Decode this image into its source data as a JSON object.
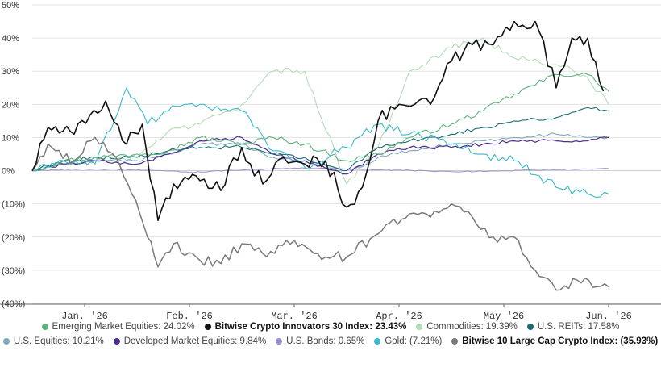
{
  "chart_data": {
    "type": "line",
    "x_labels": [
      "Jan. '26",
      "Feb. '26",
      "Mar. '26",
      "Apr. '26",
      "May '26",
      "Jun. '26"
    ],
    "ylim": [
      -40,
      50
    ],
    "y_ticks": [
      {
        "value": 50,
        "label": "50%"
      },
      {
        "value": 40,
        "label": "40%"
      },
      {
        "value": 30,
        "label": "30%"
      },
      {
        "value": 20,
        "label": "20%"
      },
      {
        "value": 10,
        "label": "10%"
      },
      {
        "value": 0,
        "label": "0%"
      },
      {
        "value": -10,
        "label": "(10%)"
      },
      {
        "value": -20,
        "label": "(20%)"
      },
      {
        "value": -30,
        "label": "(30%)"
      },
      {
        "value": -40,
        "label": "(40%)"
      }
    ],
    "grid": true,
    "legend_position": "bottom",
    "series": [
      {
        "name": "Emerging Market Equities: 24.02%",
        "color": "#5db37e",
        "bold": false,
        "points": [
          [
            0,
            0
          ],
          [
            0.3,
            3
          ],
          [
            0.6,
            4
          ],
          [
            1,
            5
          ],
          [
            1.3,
            6
          ],
          [
            1.6,
            10
          ],
          [
            2,
            8
          ],
          [
            2.3,
            10
          ],
          [
            2.6,
            8
          ],
          [
            3,
            3
          ],
          [
            3.3,
            5
          ],
          [
            3.6,
            10
          ],
          [
            4,
            14
          ],
          [
            4.3,
            18
          ],
          [
            4.6,
            23
          ],
          [
            5,
            29
          ],
          [
            5.3,
            29
          ],
          [
            5.5,
            24
          ]
        ]
      },
      {
        "name": "Bitwise Crypto Innovators 30 Index: 23.43%",
        "color": "#111111",
        "bold": true,
        "points": [
          [
            0,
            0
          ],
          [
            0.15,
            13
          ],
          [
            0.4,
            11
          ],
          [
            0.7,
            21
          ],
          [
            0.9,
            8
          ],
          [
            1.05,
            14
          ],
          [
            1.2,
            -15
          ],
          [
            1.35,
            -4
          ],
          [
            1.6,
            -3
          ],
          [
            1.8,
            -6
          ],
          [
            2.0,
            7
          ],
          [
            2.2,
            -4
          ],
          [
            2.4,
            4
          ],
          [
            2.6,
            2
          ],
          [
            2.8,
            3
          ],
          [
            3.0,
            -11
          ],
          [
            3.15,
            -5
          ],
          [
            3.3,
            15
          ],
          [
            3.5,
            20
          ],
          [
            3.8,
            20
          ],
          [
            4.0,
            33
          ],
          [
            4.2,
            38
          ],
          [
            4.4,
            38
          ],
          [
            4.6,
            45
          ],
          [
            4.8,
            45
          ],
          [
            5.0,
            25
          ],
          [
            5.15,
            40
          ],
          [
            5.3,
            40
          ],
          [
            5.45,
            24
          ]
        ]
      },
      {
        "name": "Commodities: 19.39%",
        "color": "#b4dbb6",
        "bold": false,
        "points": [
          [
            0,
            0
          ],
          [
            0.3,
            2
          ],
          [
            0.6,
            3
          ],
          [
            1,
            4
          ],
          [
            1.3,
            12
          ],
          [
            1.6,
            14
          ],
          [
            2,
            20
          ],
          [
            2.3,
            30
          ],
          [
            2.6,
            30
          ],
          [
            3,
            -4
          ],
          [
            3.3,
            7
          ],
          [
            3.6,
            30
          ],
          [
            4,
            37
          ],
          [
            4.3,
            40
          ],
          [
            4.6,
            34
          ],
          [
            5,
            32
          ],
          [
            5.3,
            28
          ],
          [
            5.5,
            20
          ]
        ]
      },
      {
        "name": "U.S. REITs: 17.58%",
        "color": "#1a6b73",
        "bold": false,
        "points": [
          [
            0,
            0
          ],
          [
            0.3,
            3
          ],
          [
            0.6,
            4
          ],
          [
            1,
            4
          ],
          [
            1.3,
            6
          ],
          [
            1.6,
            7
          ],
          [
            2,
            7
          ],
          [
            2.3,
            5
          ],
          [
            2.6,
            4
          ],
          [
            3,
            0
          ],
          [
            3.3,
            7
          ],
          [
            3.6,
            9
          ],
          [
            4,
            11
          ],
          [
            4.3,
            13
          ],
          [
            4.6,
            15
          ],
          [
            5,
            16
          ],
          [
            5.3,
            19
          ],
          [
            5.5,
            18
          ]
        ]
      },
      {
        "name": "U.S. Equities: 10.21%",
        "color": "#7fa7bf",
        "bold": false,
        "points": [
          [
            0,
            0
          ],
          [
            0.3,
            2
          ],
          [
            0.6,
            3
          ],
          [
            1,
            3
          ],
          [
            1.3,
            5
          ],
          [
            1.6,
            8
          ],
          [
            2,
            8
          ],
          [
            2.3,
            4
          ],
          [
            2.6,
            3
          ],
          [
            3,
            -1
          ],
          [
            3.3,
            4
          ],
          [
            3.6,
            6
          ],
          [
            4,
            8
          ],
          [
            4.3,
            9
          ],
          [
            4.6,
            10
          ],
          [
            5,
            11
          ],
          [
            5.3,
            10
          ],
          [
            5.5,
            10
          ]
        ]
      },
      {
        "name": "Developed Market Equities: 9.84%",
        "color": "#4b2d8f",
        "bold": false,
        "points": [
          [
            0,
            0
          ],
          [
            0.3,
            2
          ],
          [
            0.6,
            3
          ],
          [
            1,
            2
          ],
          [
            1.3,
            5
          ],
          [
            1.6,
            9
          ],
          [
            2,
            10
          ],
          [
            2.3,
            5
          ],
          [
            2.6,
            3
          ],
          [
            3,
            -1
          ],
          [
            3.3,
            5
          ],
          [
            3.6,
            7
          ],
          [
            4,
            7
          ],
          [
            4.3,
            8
          ],
          [
            4.6,
            9
          ],
          [
            5,
            9
          ],
          [
            5.3,
            9
          ],
          [
            5.5,
            10
          ]
        ]
      },
      {
        "name": "U.S. Bonds: 0.65%",
        "color": "#9a8fcf",
        "bold": false,
        "points": [
          [
            0,
            0
          ],
          [
            0.5,
            0.5
          ],
          [
            1,
            0.3
          ],
          [
            1.5,
            -0.5
          ],
          [
            2,
            0.2
          ],
          [
            2.5,
            0.8
          ],
          [
            3,
            0.5
          ],
          [
            3.5,
            0.2
          ],
          [
            4,
            -0.3
          ],
          [
            4.5,
            0
          ],
          [
            5,
            0.3
          ],
          [
            5.5,
            0.65
          ]
        ]
      },
      {
        "name": "Gold: (7.21%)",
        "color": "#3bb8cc",
        "bold": false,
        "points": [
          [
            0,
            0
          ],
          [
            0.3,
            3
          ],
          [
            0.6,
            2
          ],
          [
            0.9,
            25
          ],
          [
            1.1,
            14
          ],
          [
            1.3,
            18
          ],
          [
            1.6,
            20
          ],
          [
            2,
            18
          ],
          [
            2.3,
            6
          ],
          [
            2.6,
            1
          ],
          [
            3,
            7
          ],
          [
            3.3,
            14
          ],
          [
            3.6,
            11
          ],
          [
            4,
            8
          ],
          [
            4.3,
            5
          ],
          [
            4.6,
            3
          ],
          [
            5,
            -5
          ],
          [
            5.3,
            -7
          ],
          [
            5.5,
            -7
          ]
        ]
      },
      {
        "name": "Bitwise 10 Large Cap Crypto Index: (35.93%)",
        "color": "#7a7a7a",
        "bold": true,
        "points": [
          [
            0,
            0
          ],
          [
            0.15,
            8
          ],
          [
            0.4,
            3
          ],
          [
            0.6,
            10
          ],
          [
            0.8,
            4
          ],
          [
            0.95,
            -7
          ],
          [
            1.1,
            -20
          ],
          [
            1.2,
            -29
          ],
          [
            1.35,
            -22
          ],
          [
            1.6,
            -27
          ],
          [
            1.8,
            -28
          ],
          [
            2.0,
            -22
          ],
          [
            2.2,
            -25
          ],
          [
            2.5,
            -21
          ],
          [
            2.8,
            -26
          ],
          [
            3.0,
            -26
          ],
          [
            3.3,
            -19
          ],
          [
            3.6,
            -13
          ],
          [
            3.8,
            -14
          ],
          [
            4.0,
            -10
          ],
          [
            4.2,
            -14
          ],
          [
            4.4,
            -20
          ],
          [
            4.6,
            -20
          ],
          [
            4.8,
            -30
          ],
          [
            5.0,
            -36
          ],
          [
            5.2,
            -33
          ],
          [
            5.5,
            -35
          ]
        ]
      }
    ]
  }
}
